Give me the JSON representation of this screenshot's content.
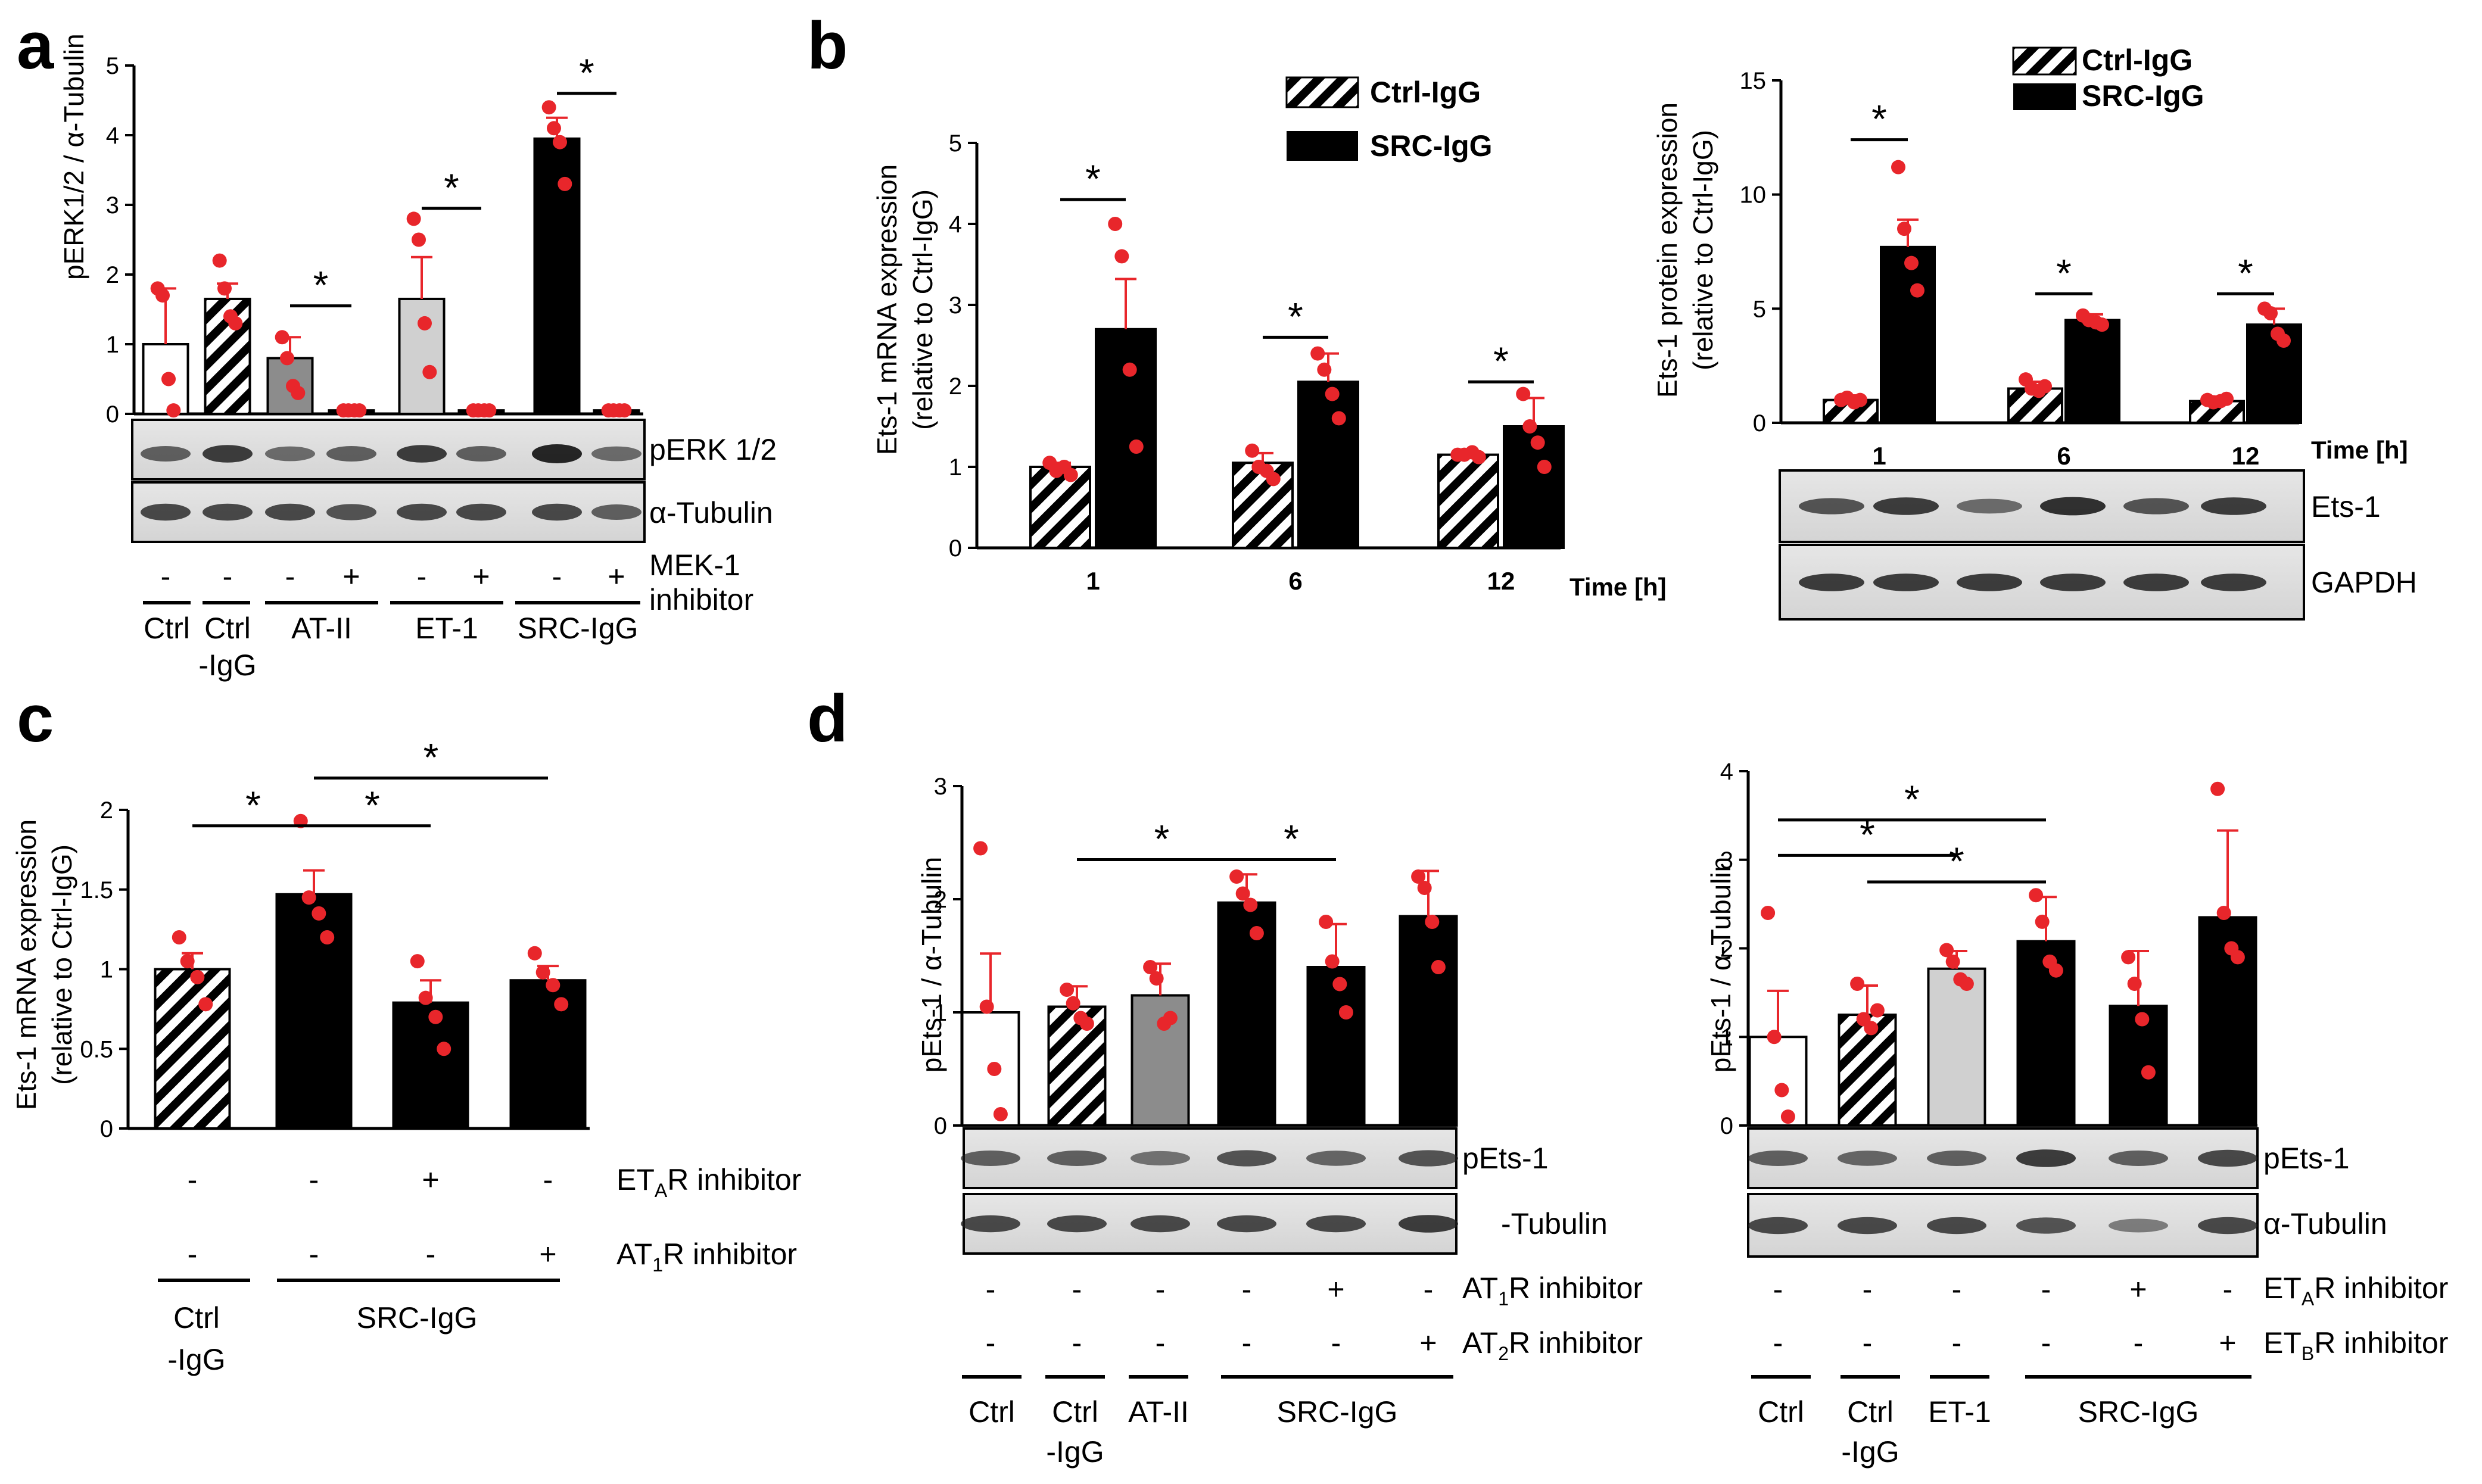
{
  "colors": {
    "red": "#e8262b",
    "black": "#000000",
    "dark_gray": "#8c8c8c",
    "light_gray": "#d0d0d0",
    "white": "#ffffff",
    "blot_bg": "#dcdcdc"
  },
  "panel_letters": {
    "a": "a",
    "b": "b",
    "c": "c",
    "d": "d"
  },
  "chart_data": [
    {
      "id": "a",
      "type": "bar",
      "ylabel": "pERK1/2 / α-Tubulin",
      "ylim": [
        0,
        5
      ],
      "yticks": [
        0,
        1,
        2,
        3,
        4,
        5
      ],
      "bars": [
        {
          "value": 1.0,
          "err": 0.8,
          "style": "white",
          "points": [
            1.8,
            1.7,
            0.5,
            0.05
          ]
        },
        {
          "value": 1.65,
          "err": 0.22,
          "style": "hatch",
          "points": [
            2.2,
            1.8,
            1.4,
            1.3
          ]
        },
        {
          "value": 0.8,
          "err": 0.3,
          "style": "darkgray",
          "points": [
            1.1,
            0.8,
            0.4,
            0.3
          ]
        },
        {
          "value": 0.05,
          "err": 0.02,
          "style": "black",
          "points": [
            0.05,
            0.05,
            0.05,
            0.05
          ]
        },
        {
          "value": 1.65,
          "err": 0.6,
          "style": "lightgray",
          "points": [
            2.8,
            2.5,
            1.3,
            0.6
          ]
        },
        {
          "value": 0.05,
          "err": 0.02,
          "style": "black",
          "points": [
            0.05,
            0.05,
            0.05,
            0.05
          ]
        },
        {
          "value": 3.95,
          "err": 0.3,
          "style": "black",
          "points": [
            4.4,
            4.1,
            3.9,
            3.3
          ]
        },
        {
          "value": 0.05,
          "err": 0.02,
          "style": "black",
          "points": [
            0.05,
            0.05,
            0.05,
            0.05
          ]
        }
      ],
      "sig": [
        {
          "from": 2,
          "to": 3,
          "y": 1.55,
          "label": "*"
        },
        {
          "from": 4,
          "to": 5,
          "y": 2.95,
          "label": "*"
        },
        {
          "from": 6,
          "to": 7,
          "y": 4.6,
          "label": "*"
        }
      ]
    },
    {
      "id": "b1",
      "type": "bar",
      "ylabel_line1": "Ets-1 mRNA expression",
      "ylabel_line2": "(relative to Ctrl-IgG)",
      "ylim": [
        0,
        5
      ],
      "yticks": [
        0,
        1,
        2,
        3,
        4,
        5
      ],
      "categories": [
        "1",
        "6",
        "12"
      ],
      "xlabel": "Time [h]",
      "series": [
        {
          "name": "Ctrl-IgG",
          "style": "hatch",
          "values": [
            1.0,
            1.05,
            1.15
          ],
          "err": [
            0.05,
            0.12,
            0.04
          ],
          "points": [
            [
              1.05,
              0.95,
              1.0,
              0.9
            ],
            [
              1.2,
              1.0,
              0.95,
              0.85
            ],
            [
              1.15,
              1.15,
              1.18,
              1.12
            ]
          ]
        },
        {
          "name": "SRC-IgG",
          "style": "black",
          "values": [
            2.7,
            2.05,
            1.5
          ],
          "err": [
            0.62,
            0.35,
            0.35
          ],
          "points": [
            [
              4.0,
              3.6,
              2.2,
              1.25
            ],
            [
              2.4,
              2.2,
              1.9,
              1.6
            ],
            [
              1.9,
              1.5,
              1.3,
              1.0
            ]
          ]
        }
      ],
      "sig": [
        {
          "cat": 0,
          "y": 4.3,
          "label": "*"
        },
        {
          "cat": 1,
          "y": 2.6,
          "label": "*"
        },
        {
          "cat": 2,
          "y": 2.05,
          "label": "*"
        }
      ]
    },
    {
      "id": "b2",
      "type": "bar",
      "ylabel_line1": "Ets-1 protein expression",
      "ylabel_line2": "(relative to Ctrl-IgG)",
      "ylim": [
        0,
        15
      ],
      "yticks": [
        0,
        5,
        10,
        15
      ],
      "categories": [
        "1",
        "6",
        "12"
      ],
      "xlabel": "Time [h]",
      "series": [
        {
          "name": "Ctrl-IgG",
          "style": "hatch",
          "values": [
            1.0,
            1.5,
            0.95
          ],
          "err": [
            0.2,
            0.3,
            0.2
          ],
          "points": [
            [
              1.0,
              1.1,
              0.9,
              1.0
            ],
            [
              1.9,
              1.5,
              1.4,
              1.6
            ],
            [
              1.0,
              0.9,
              0.95,
              1.05
            ]
          ]
        },
        {
          "name": "SRC-IgG",
          "style": "black",
          "values": [
            7.7,
            4.5,
            4.3
          ],
          "err": [
            1.2,
            0.25,
            0.7
          ],
          "points": [
            [
              11.2,
              8.5,
              7.0,
              5.8
            ],
            [
              4.7,
              4.5,
              4.4,
              4.3
            ],
            [
              5.0,
              4.8,
              3.9,
              3.6
            ]
          ]
        }
      ],
      "sig": [
        {
          "cat": 0,
          "y": 12.4,
          "label": "*"
        },
        {
          "cat": 1,
          "y": 5.65,
          "label": "*"
        },
        {
          "cat": 2,
          "y": 5.65,
          "label": "*"
        }
      ]
    },
    {
      "id": "c",
      "type": "bar",
      "ylabel_line1": "Ets-1 mRNA expression",
      "ylabel_line2": "(relative to Ctrl-IgG)",
      "ylim": [
        0,
        2
      ],
      "yticks": [
        0,
        0.5,
        1,
        1.5,
        2
      ],
      "yticklabels": [
        "0",
        "0.5",
        "1",
        "1.5",
        "2"
      ],
      "bars": [
        {
          "value": 1.0,
          "err": 0.1,
          "style": "hatch",
          "points": [
            1.2,
            1.05,
            0.95,
            0.78
          ]
        },
        {
          "value": 1.47,
          "err": 0.15,
          "style": "black",
          "points": [
            1.93,
            1.45,
            1.35,
            1.2
          ]
        },
        {
          "value": 0.79,
          "err": 0.14,
          "style": "black",
          "points": [
            1.05,
            0.82,
            0.7,
            0.5
          ]
        },
        {
          "value": 0.93,
          "err": 0.09,
          "style": "black",
          "points": [
            1.1,
            0.98,
            0.9,
            0.78
          ]
        }
      ],
      "sig": [
        {
          "from": 0,
          "to": 1,
          "y": 1.9,
          "label": "*"
        },
        {
          "from": 1,
          "to": 2,
          "y": 1.9,
          "label": "*"
        },
        {
          "from": 1,
          "to": 3,
          "y": 2.2,
          "label": "*"
        }
      ]
    },
    {
      "id": "d1",
      "type": "bar",
      "ylabel": "pEts-1 / α-Tubulin",
      "ylim": [
        0,
        3
      ],
      "yticks": [
        0,
        1,
        2,
        3
      ],
      "bars": [
        {
          "value": 1.0,
          "err": 0.52,
          "style": "white",
          "points": [
            2.45,
            1.05,
            0.5,
            0.1
          ]
        },
        {
          "value": 1.05,
          "err": 0.18,
          "style": "hatch",
          "points": [
            1.2,
            1.08,
            0.95,
            0.9
          ]
        },
        {
          "value": 1.15,
          "err": 0.28,
          "style": "darkgray",
          "points": [
            1.4,
            1.3,
            0.9,
            0.95
          ]
        },
        {
          "value": 1.97,
          "err": 0.25,
          "style": "black",
          "points": [
            2.2,
            2.05,
            1.95,
            1.7
          ]
        },
        {
          "value": 1.4,
          "err": 0.38,
          "style": "black",
          "points": [
            1.8,
            1.45,
            1.25,
            1.0
          ]
        },
        {
          "value": 1.85,
          "err": 0.4,
          "style": "black",
          "points": [
            2.2,
            2.1,
            1.8,
            1.4
          ]
        }
      ],
      "sig": [
        {
          "from": 1,
          "to": 3,
          "y": 2.35,
          "label": "*"
        },
        {
          "from": 3,
          "to": 4,
          "y": 2.35,
          "label": "*"
        }
      ]
    },
    {
      "id": "d2",
      "type": "bar",
      "ylabel": "pEts-1 / α-Tubulin",
      "ylim": [
        0,
        4
      ],
      "yticks": [
        0,
        1,
        2,
        3,
        4
      ],
      "bars": [
        {
          "value": 1.0,
          "err": 0.52,
          "style": "white",
          "points": [
            2.4,
            1.0,
            0.4,
            0.1
          ]
        },
        {
          "value": 1.25,
          "err": 0.33,
          "style": "hatch",
          "points": [
            1.6,
            1.2,
            1.1,
            1.3
          ]
        },
        {
          "value": 1.77,
          "err": 0.2,
          "style": "lightgray",
          "points": [
            1.98,
            1.85,
            1.65,
            1.6
          ]
        },
        {
          "value": 2.08,
          "err": 0.5,
          "style": "black",
          "points": [
            2.6,
            2.3,
            1.85,
            1.75
          ]
        },
        {
          "value": 1.35,
          "err": 0.62,
          "style": "black",
          "points": [
            1.9,
            1.6,
            1.2,
            0.6
          ]
        },
        {
          "value": 2.35,
          "err": 0.98,
          "style": "black",
          "points": [
            3.8,
            2.4,
            2.0,
            1.9
          ]
        }
      ],
      "sig": [
        {
          "from": 0,
          "to": 3,
          "y": 3.45,
          "label": "*"
        },
        {
          "from": 0,
          "to": 2,
          "y": 3.05,
          "label": "*"
        },
        {
          "from": 1,
          "to": 3,
          "y": 2.75,
          "label": "*"
        }
      ]
    }
  ],
  "panel_a": {
    "blot_labels": [
      "pERK 1/2",
      "α-Tubulin"
    ],
    "signs": [
      "-",
      "-",
      "-",
      "+",
      "-",
      "+",
      "-",
      "+"
    ],
    "sign_label_line1": "MEK-1",
    "sign_label_line2": "inhibitor",
    "groups": [
      "Ctrl",
      "Ctrl",
      "-IgG",
      "AT-II",
      "ET-1",
      "SRC-IgG"
    ]
  },
  "panel_b": {
    "legend": [
      "Ctrl-IgG",
      "SRC-IgG"
    ],
    "blot_labels": [
      "Ets-1",
      "GAPDH"
    ]
  },
  "panel_c": {
    "row1_signs": [
      "-",
      "-",
      "+",
      "-"
    ],
    "row2_signs": [
      "-",
      "-",
      "-",
      "+"
    ],
    "row1_label_pre": "ET",
    "row1_label_sub": "A",
    "row1_label_post": "R inhibitor",
    "row2_label_pre": "AT",
    "row2_label_sub": "1",
    "row2_label_post": "R inhibitor",
    "group1_line1": "Ctrl",
    "group1_line2": "-IgG",
    "group2": "SRC-IgG"
  },
  "panel_d1": {
    "blot_labels": [
      "pEts-1",
      "-Tubulin"
    ],
    "row1_signs": [
      "-",
      "-",
      "-",
      "-",
      "+",
      "-"
    ],
    "row2_signs": [
      "-",
      "-",
      "-",
      "-",
      "-",
      "+"
    ],
    "row1_label_pre": "AT",
    "row1_label_sub": "1",
    "row1_label_post": "R inhibitor",
    "row2_label_pre": "AT",
    "row2_label_sub": "2",
    "row2_label_post": "R inhibitor",
    "groups": [
      "Ctrl",
      "Ctrl",
      "-IgG",
      "AT-II",
      "SRC-IgG"
    ]
  },
  "panel_d2": {
    "blot_labels": [
      "pEts-1",
      "α-Tubulin"
    ],
    "row1_signs": [
      "-",
      "-",
      "-",
      "-",
      "+",
      "-"
    ],
    "row2_signs": [
      "-",
      "-",
      "-",
      "-",
      "-",
      "+"
    ],
    "row1_label_pre": "ET",
    "row1_label_sub": "A",
    "row1_label_post": "R inhibitor",
    "row2_label_pre": "ET",
    "row2_label_sub": "B",
    "row2_label_post": "R inhibitor",
    "groups": [
      "Ctrl",
      "Ctrl",
      "-IgG",
      "ET-1",
      "SRC-IgG"
    ]
  }
}
